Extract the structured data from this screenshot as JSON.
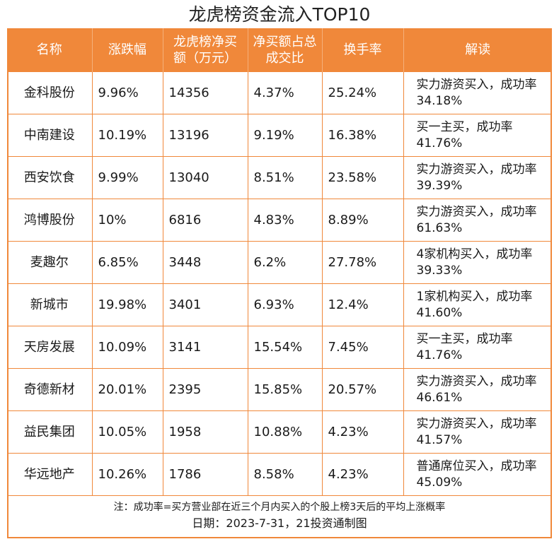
{
  "title": "龙虎榜资金流入TOP10",
  "table": {
    "headers": [
      "名称",
      "涨跌幅",
      "龙虎榜净买额（万元）",
      "净买额占总成交比",
      "换手率",
      "解读"
    ],
    "rows": [
      {
        "name": "金科股份",
        "change": "9.96%",
        "net_buy": "14356",
        "ratio": "4.37%",
        "turnover": "25.24%",
        "note": "实力游资买入，成功率34.18%"
      },
      {
        "name": "中南建设",
        "change": "10.19%",
        "net_buy": "13196",
        "ratio": "9.19%",
        "turnover": "16.38%",
        "note": "买一主买，成功率41.76%"
      },
      {
        "name": "西安饮食",
        "change": "9.99%",
        "net_buy": "13040",
        "ratio": "8.51%",
        "turnover": "23.58%",
        "note": "实力游资买入，成功率39.39%"
      },
      {
        "name": "鸿博股份",
        "change": "10%",
        "net_buy": "6816",
        "ratio": "4.83%",
        "turnover": "8.89%",
        "note": "实力游资买入，成功率61.63%"
      },
      {
        "name": "麦趣尔",
        "change": "6.85%",
        "net_buy": "3448",
        "ratio": "6.2%",
        "turnover": "27.78%",
        "note": "4家机构买入，成功率39.33%"
      },
      {
        "name": "新城市",
        "change": "19.98%",
        "net_buy": "3401",
        "ratio": "6.93%",
        "turnover": "12.4%",
        "note": "1家机构买入，成功率41.60%"
      },
      {
        "name": "天房发展",
        "change": "10.09%",
        "net_buy": "3141",
        "ratio": "15.54%",
        "turnover": "7.45%",
        "note": "买一主买，成功率41.76%"
      },
      {
        "name": "奇德新材",
        "change": "20.01%",
        "net_buy": "2395",
        "ratio": "15.85%",
        "turnover": "20.57%",
        "note": "实力游资买入，成功率46.61%"
      },
      {
        "name": "益民集团",
        "change": "10.05%",
        "net_buy": "1958",
        "ratio": "10.88%",
        "turnover": "4.23%",
        "note": "实力游资买入，成功率41.57%"
      },
      {
        "name": "华远地产",
        "change": "10.26%",
        "net_buy": "1786",
        "ratio": "8.58%",
        "turnover": "4.23%",
        "note": "普通席位买入，成功率45.09%"
      }
    ]
  },
  "footer": {
    "note": "注：成功率=买方营业部在近三个月内买入的个股上榜3天后的平均上涨概率",
    "date": "日期：2023-7-31，21投资通制图"
  },
  "colors": {
    "accent": "#f0883a",
    "header_text": "#ffffff",
    "body_text": "#1a1a1a"
  }
}
